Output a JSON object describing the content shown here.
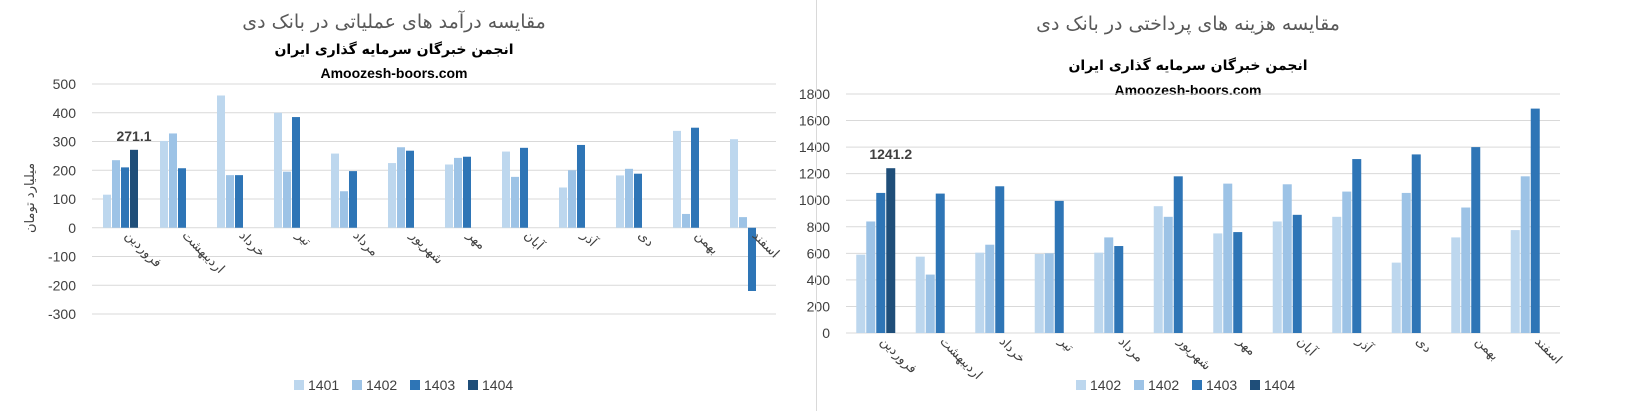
{
  "chart_data": [
    {
      "type": "bar",
      "title": "مقایسه درآمد های عملیاتی در بانک دی",
      "subtitle": "انجمن خبرگان سرمایه گذاری ایران",
      "website": "Amoozesh-boors.com",
      "ylabel": "میلیارد تومان",
      "xlabel": "",
      "ylim": [
        -300,
        500
      ],
      "yticks": [
        -300,
        -200,
        -100,
        0,
        100,
        200,
        300,
        400,
        500
      ],
      "grid": true,
      "legend_position": "bottom",
      "categories": [
        "فروردین",
        "اردیبهشت",
        "خرداد",
        "تیر",
        "مرداد",
        "شهریور",
        "مهر",
        "آبان",
        "آذر",
        "دی",
        "بهمن",
        "اسفند"
      ],
      "series": [
        {
          "name": "1401",
          "color": "#bdd7ee",
          "values": [
            115,
            302,
            460,
            400,
            258,
            225,
            220,
            265,
            140,
            182,
            337,
            308
          ]
        },
        {
          "name": "1402",
          "color": "#9dc3e6",
          "values": [
            235,
            328,
            183,
            195,
            127,
            280,
            243,
            177,
            200,
            205,
            48,
            37
          ]
        },
        {
          "name": "1403",
          "color": "#2e75b6",
          "values": [
            210,
            207,
            183,
            385,
            197,
            268,
            247,
            278,
            288,
            188,
            348,
            -220
          ]
        },
        {
          "name": "1404",
          "color": "#1f4e79",
          "values": [
            271.1,
            null,
            null,
            null,
            null,
            null,
            null,
            null,
            null,
            null,
            null,
            null
          ]
        }
      ],
      "annotations": [
        {
          "series": "1404",
          "category": "فروردین",
          "text": "271.1"
        }
      ]
    },
    {
      "type": "bar",
      "title": "مقایسه هزینه های پرداختی در بانک دی",
      "subtitle": "انجمن خبرگان سرمایه گذاری ایران",
      "website": "Amoozesh-boors.com",
      "ylabel": "",
      "xlabel": "",
      "ylim": [
        0,
        1800
      ],
      "yticks": [
        0,
        200,
        400,
        600,
        800,
        1000,
        1200,
        1400,
        1600,
        1800
      ],
      "grid": true,
      "legend_position": "bottom",
      "categories": [
        "فروردین",
        "اردیبهشت",
        "خرداد",
        "تیر",
        "مرداد",
        "شهریور",
        "مهر",
        "آبان",
        "آذر",
        "دی",
        "بهمن",
        "اسفند"
      ],
      "series": [
        {
          "name": "1402",
          "color": "#bdd7ee",
          "values": [
            590,
            575,
            605,
            595,
            605,
            955,
            750,
            840,
            875,
            530,
            720,
            775
          ]
        },
        {
          "name": "1402",
          "color": "#9dc3e6",
          "values": [
            840,
            440,
            665,
            600,
            720,
            875,
            1125,
            1120,
            1065,
            1055,
            945,
            1180
          ]
        },
        {
          "name": "1403",
          "color": "#2e75b6",
          "values": [
            1055,
            1050,
            1105,
            995,
            655,
            1180,
            760,
            890,
            1310,
            1345,
            1400,
            1690
          ]
        },
        {
          "name": "1404",
          "color": "#1f4e79",
          "values": [
            1241.2,
            null,
            null,
            null,
            null,
            null,
            null,
            null,
            null,
            null,
            null,
            null
          ]
        }
      ],
      "annotations": [
        {
          "series": "1404",
          "category": "فروردین",
          "text": "1241.2"
        }
      ]
    }
  ]
}
